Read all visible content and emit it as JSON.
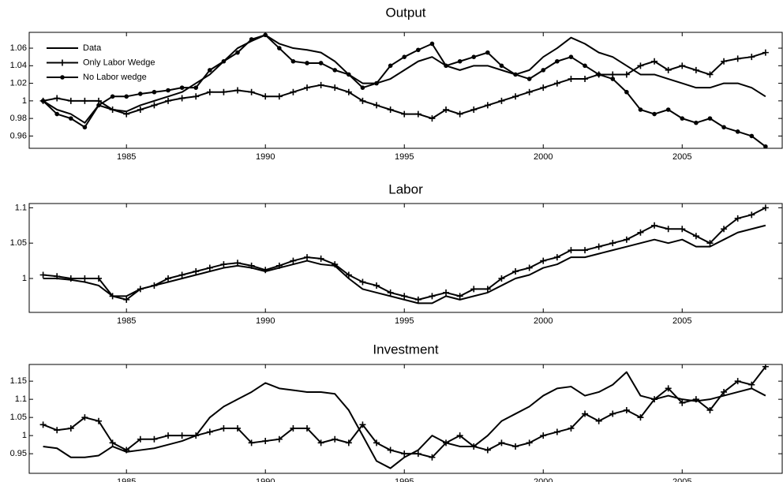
{
  "chart_data": [
    {
      "type": "line",
      "title": "Output",
      "x": [
        1982,
        1982.5,
        1983,
        1983.5,
        1984,
        1984.5,
        1985,
        1985.5,
        1986,
        1986.5,
        1987,
        1987.5,
        1988,
        1988.5,
        1989,
        1989.5,
        1990,
        1990.5,
        1991,
        1991.5,
        1992,
        1992.5,
        1993,
        1993.5,
        1994,
        1994.5,
        1995,
        1995.5,
        1996,
        1996.5,
        1997,
        1997.5,
        1998,
        1998.5,
        1999,
        1999.5,
        2000,
        2000.5,
        2001,
        2001.5,
        2002,
        2002.5,
        2003,
        2003.5,
        2004,
        2004.5,
        2005,
        2005.5,
        2006,
        2006.5,
        2007,
        2007.5,
        2008
      ],
      "xlim": [
        1981.5,
        2008.6
      ],
      "xticks": [
        1985,
        1990,
        1995,
        2000,
        2005
      ],
      "ylim": [
        0.946,
        1.078
      ],
      "yticks": [
        0.96,
        0.98,
        1,
        1.02,
        1.04,
        1.06
      ],
      "legend": "upper left",
      "series": [
        {
          "name": "Data",
          "color": "#000000",
          "marker": "none",
          "values": [
            1.0,
            0.99,
            0.985,
            0.975,
            0.995,
            0.99,
            0.988,
            0.995,
            1.0,
            1.005,
            1.01,
            1.02,
            1.03,
            1.045,
            1.06,
            1.068,
            1.075,
            1.065,
            1.06,
            1.058,
            1.055,
            1.045,
            1.03,
            1.02,
            1.02,
            1.025,
            1.035,
            1.045,
            1.05,
            1.04,
            1.035,
            1.04,
            1.04,
            1.035,
            1.03,
            1.035,
            1.05,
            1.06,
            1.072,
            1.065,
            1.055,
            1.05,
            1.04,
            1.03,
            1.03,
            1.025,
            1.02,
            1.015,
            1.015,
            1.02,
            1.02,
            1.015,
            1.005
          ]
        },
        {
          "name": "Only Labor Wedge",
          "color": "#000000",
          "marker": "plus",
          "values": [
            1.0,
            1.003,
            1.0,
            1.0,
            1.0,
            0.99,
            0.985,
            0.99,
            0.995,
            1.0,
            1.003,
            1.005,
            1.01,
            1.01,
            1.012,
            1.01,
            1.005,
            1.005,
            1.01,
            1.015,
            1.018,
            1.015,
            1.01,
            1.0,
            0.995,
            0.99,
            0.985,
            0.985,
            0.98,
            0.99,
            0.985,
            0.99,
            0.995,
            1.0,
            1.005,
            1.01,
            1.015,
            1.02,
            1.025,
            1.025,
            1.03,
            1.03,
            1.03,
            1.04,
            1.045,
            1.035,
            1.04,
            1.035,
            1.03,
            1.045,
            1.048,
            1.05,
            1.055
          ]
        },
        {
          "name": "No Labor wedge",
          "color": "#000000",
          "marker": "circle",
          "values": [
            1.0,
            0.985,
            0.98,
            0.97,
            0.995,
            1.005,
            1.005,
            1.008,
            1.01,
            1.012,
            1.015,
            1.015,
            1.035,
            1.045,
            1.055,
            1.07,
            1.075,
            1.06,
            1.045,
            1.043,
            1.043,
            1.035,
            1.03,
            1.015,
            1.02,
            1.04,
            1.05,
            1.058,
            1.065,
            1.04,
            1.045,
            1.05,
            1.055,
            1.04,
            1.03,
            1.025,
            1.035,
            1.045,
            1.05,
            1.04,
            1.03,
            1.025,
            1.01,
            0.99,
            0.985,
            0.99,
            0.98,
            0.975,
            0.98,
            0.97,
            0.965,
            0.96,
            0.948
          ]
        }
      ]
    },
    {
      "type": "line",
      "title": "Labor",
      "x": [
        1982,
        1982.5,
        1983,
        1983.5,
        1984,
        1984.5,
        1985,
        1985.5,
        1986,
        1986.5,
        1987,
        1987.5,
        1988,
        1988.5,
        1989,
        1989.5,
        1990,
        1990.5,
        1991,
        1991.5,
        1992,
        1992.5,
        1993,
        1993.5,
        1994,
        1994.5,
        1995,
        1995.5,
        1996,
        1996.5,
        1997,
        1997.5,
        1998,
        1998.5,
        1999,
        1999.5,
        2000,
        2000.5,
        2001,
        2001.5,
        2002,
        2002.5,
        2003,
        2003.5,
        2004,
        2004.5,
        2005,
        2005.5,
        2006,
        2006.5,
        2007,
        2007.5,
        2008
      ],
      "xlim": [
        1981.5,
        2008.6
      ],
      "xticks": [
        1985,
        1990,
        1995,
        2000,
        2005
      ],
      "ylim": [
        0.952,
        1.106
      ],
      "yticks": [
        1,
        1.05,
        1.1
      ],
      "series": [
        {
          "color": "#000000",
          "marker": "none",
          "values": [
            1.0,
            1.0,
            0.998,
            0.995,
            0.99,
            0.975,
            0.975,
            0.985,
            0.99,
            0.995,
            1.0,
            1.005,
            1.01,
            1.015,
            1.018,
            1.015,
            1.01,
            1.015,
            1.02,
            1.025,
            1.02,
            1.018,
            1.0,
            0.985,
            0.98,
            0.975,
            0.97,
            0.965,
            0.965,
            0.975,
            0.97,
            0.975,
            0.98,
            0.99,
            1.0,
            1.005,
            1.015,
            1.02,
            1.03,
            1.03,
            1.035,
            1.04,
            1.045,
            1.05,
            1.055,
            1.05,
            1.055,
            1.045,
            1.045,
            1.055,
            1.065,
            1.07,
            1.075
          ]
        },
        {
          "color": "#000000",
          "marker": "plus",
          "values": [
            1.005,
            1.003,
            1.0,
            1.0,
            1.0,
            0.975,
            0.97,
            0.985,
            0.99,
            1.0,
            1.005,
            1.01,
            1.015,
            1.02,
            1.022,
            1.018,
            1.012,
            1.018,
            1.025,
            1.03,
            1.028,
            1.02,
            1.005,
            0.995,
            0.99,
            0.98,
            0.975,
            0.97,
            0.975,
            0.98,
            0.975,
            0.985,
            0.985,
            1.0,
            1.01,
            1.015,
            1.025,
            1.03,
            1.04,
            1.04,
            1.045,
            1.05,
            1.055,
            1.065,
            1.075,
            1.07,
            1.07,
            1.06,
            1.05,
            1.07,
            1.085,
            1.09,
            1.1
          ]
        }
      ]
    },
    {
      "type": "line",
      "title": "Investment",
      "x": [
        1982,
        1982.5,
        1983,
        1983.5,
        1984,
        1984.5,
        1985,
        1985.5,
        1986,
        1986.5,
        1987,
        1987.5,
        1988,
        1988.5,
        1989,
        1989.5,
        1990,
        1990.5,
        1991,
        1991.5,
        1992,
        1992.5,
        1993,
        1993.5,
        1994,
        1994.5,
        1995,
        1995.5,
        1996,
        1996.5,
        1997,
        1997.5,
        1998,
        1998.5,
        1999,
        1999.5,
        2000,
        2000.5,
        2001,
        2001.5,
        2002,
        2002.5,
        2003,
        2003.5,
        2004,
        2004.5,
        2005,
        2005.5,
        2006,
        2006.5,
        2007,
        2007.5,
        2008
      ],
      "xlim": [
        1981.5,
        2008.6
      ],
      "xticks": [
        1985,
        1990,
        1995,
        2000,
        2005
      ],
      "ylim": [
        0.896,
        1.196
      ],
      "yticks": [
        0.95,
        1,
        1.05,
        1.1,
        1.15
      ],
      "series": [
        {
          "color": "#000000",
          "marker": "none",
          "values": [
            0.97,
            0.965,
            0.94,
            0.94,
            0.945,
            0.97,
            0.955,
            0.96,
            0.965,
            0.975,
            0.985,
            1.0,
            1.05,
            1.08,
            1.1,
            1.12,
            1.145,
            1.13,
            1.125,
            1.12,
            1.12,
            1.115,
            1.07,
            1.0,
            0.93,
            0.91,
            0.94,
            0.96,
            1.0,
            0.98,
            0.97,
            0.97,
            1.0,
            1.04,
            1.06,
            1.08,
            1.11,
            1.13,
            1.135,
            1.11,
            1.12,
            1.14,
            1.175,
            1.11,
            1.1,
            1.11,
            1.1,
            1.095,
            1.1,
            1.11,
            1.12,
            1.13,
            1.11
          ]
        },
        {
          "color": "#000000",
          "marker": "plus",
          "values": [
            1.03,
            1.015,
            1.02,
            1.05,
            1.04,
            0.98,
            0.96,
            0.99,
            0.99,
            1.0,
            1.0,
            1.0,
            1.01,
            1.02,
            1.02,
            0.98,
            0.985,
            0.99,
            1.02,
            1.02,
            0.98,
            0.99,
            0.98,
            1.03,
            0.98,
            0.96,
            0.95,
            0.95,
            0.94,
            0.98,
            1.0,
            0.97,
            0.96,
            0.98,
            0.97,
            0.98,
            1.0,
            1.01,
            1.02,
            1.06,
            1.04,
            1.06,
            1.07,
            1.05,
            1.1,
            1.13,
            1.09,
            1.1,
            1.07,
            1.12,
            1.15,
            1.14,
            1.19
          ]
        }
      ]
    }
  ]
}
